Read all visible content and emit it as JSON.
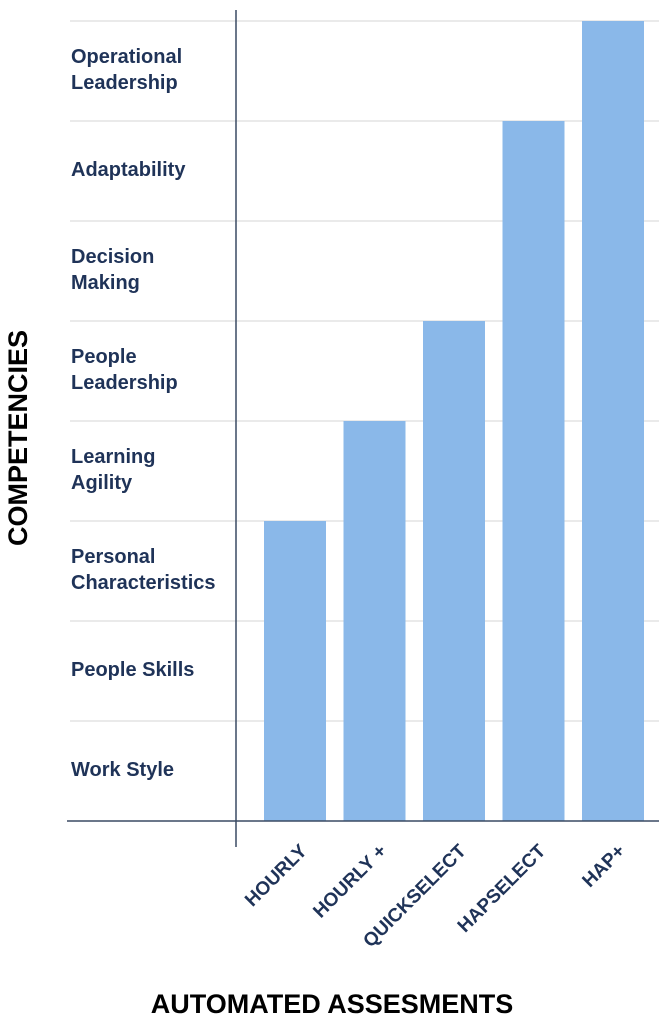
{
  "chart_data": {
    "type": "bar",
    "title": "",
    "xlabel": "AUTOMATED ASSESMENTS",
    "ylabel": "COMPETENCIES",
    "categories": [
      "HOURLY",
      "HOURLY +",
      "QUICKSELECT",
      "HAPSELECT",
      "HAP+"
    ],
    "values": [
      3,
      4,
      5,
      7,
      8
    ],
    "ylim": [
      0,
      8
    ],
    "y_levels": [
      [
        "Work Style"
      ],
      [
        "People Skills"
      ],
      [
        "Personal",
        "Characteristics"
      ],
      [
        "Learning",
        "Agility"
      ],
      [
        "People",
        "Leadership"
      ],
      [
        "Decision",
        "Making"
      ],
      [
        "Adaptability"
      ],
      [
        "Operational",
        "Leadership"
      ]
    ],
    "grid": true,
    "legend": "none"
  },
  "colors": {
    "bar": "#8ab8e9",
    "text": "#1f3358",
    "axis": "#3a4a63",
    "grid": "#d4d4d4",
    "title": "#000000"
  }
}
